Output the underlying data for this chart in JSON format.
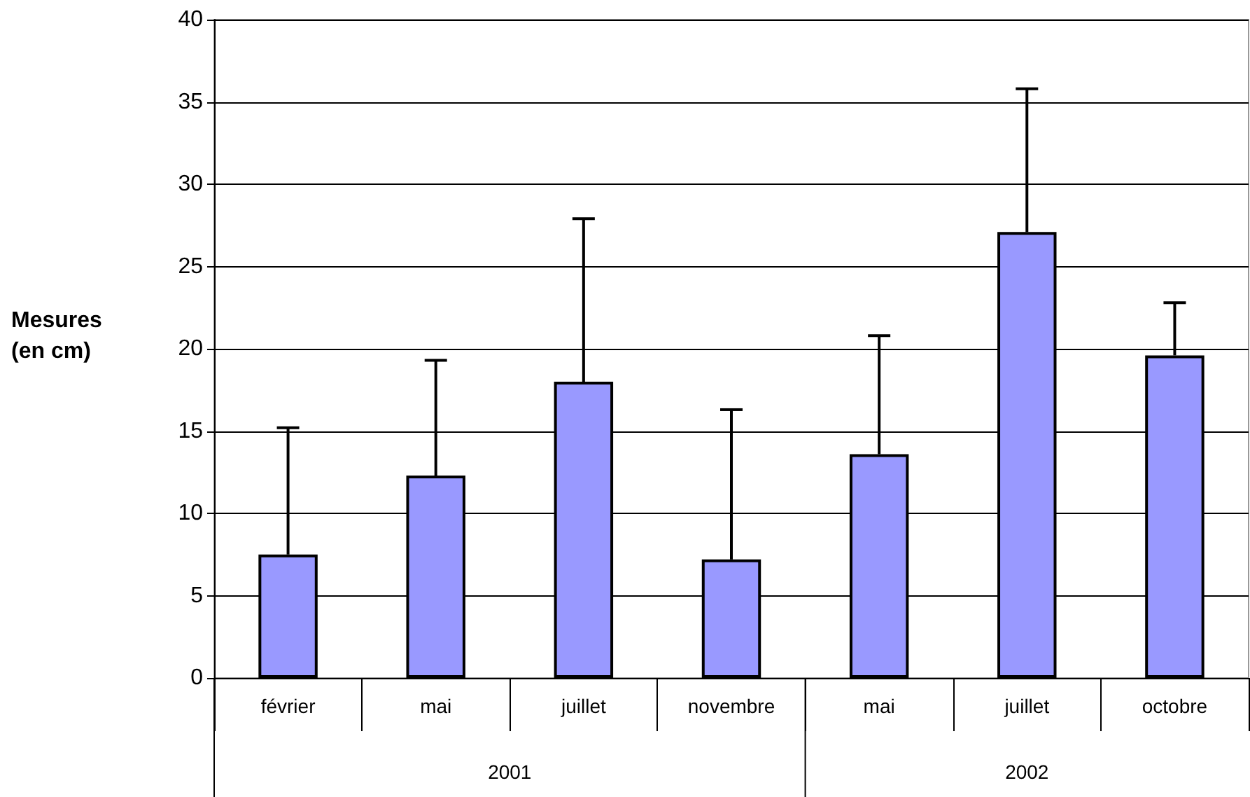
{
  "chart_data": {
    "type": "bar",
    "ylabel": "Mesures\n(en cm)",
    "categories": [
      "février",
      "mai",
      "juillet",
      "novembre",
      "mai",
      "juillet",
      "octobre"
    ],
    "values": [
      7.5,
      12.3,
      18.0,
      7.2,
      13.6,
      27.1,
      19.6
    ],
    "errors": [
      [
        7.5,
        15.2
      ],
      [
        12.3,
        19.3
      ],
      [
        18.0,
        27.9
      ],
      [
        7.2,
        16.3
      ],
      [
        13.6,
        20.8
      ],
      [
        27.1,
        35.8
      ],
      [
        19.6,
        22.8
      ]
    ],
    "color": "#9999ff",
    "ylim": [
      0,
      40
    ],
    "yticks": [
      0,
      5,
      10,
      15,
      20,
      25,
      30,
      35,
      40
    ],
    "grid": "y",
    "annotations": [
      "2001",
      "2002"
    ]
  }
}
